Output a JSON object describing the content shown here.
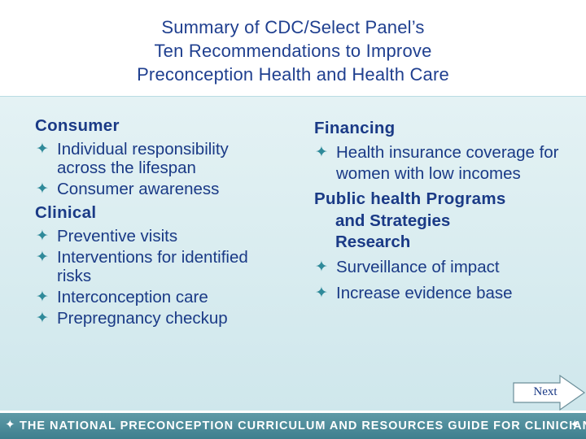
{
  "title": {
    "lines": [
      "Summary of CDC/Select Panel’s",
      "Ten Recommendations to Improve",
      "Preconception Health and Health Care"
    ]
  },
  "bullet_glyph": "✦",
  "left_column": {
    "consumer_heading": "Consumer",
    "consumer_items": [
      "Individual responsibility across the lifespan",
      "Consumer awareness"
    ],
    "clinical_heading": "Clinical",
    "clinical_items": [
      "Preventive visits",
      "Interventions for identified risks",
      "Interconception care",
      "Prepregnancy checkup"
    ]
  },
  "right_column": {
    "financing_heading": "Financing",
    "financing_items": [
      "Health insurance coverage for women with low incomes"
    ],
    "public_heading_line1": "Public health Programs",
    "public_heading_line2": "and Strategies",
    "public_heading_line3": "Research",
    "public_items": [
      "Surveillance of impact",
      "Increase evidence base"
    ]
  },
  "next_button": {
    "label": "Next"
  },
  "footer": {
    "text": "THE NATIONAL PRECONCEPTION CURRICULUM AND RESOURCES GUIDE FOR CLINICIANS"
  },
  "colors": {
    "title": "#1f3f8f",
    "body_text": "#1a3a86",
    "bullet": "#2f8a9a",
    "footer_bg": "#4a8a98",
    "panel_bg": "#d9edf0"
  }
}
